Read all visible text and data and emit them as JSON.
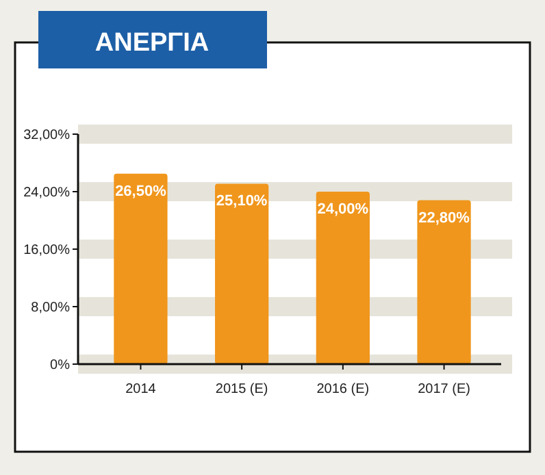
{
  "chart_data": {
    "type": "bar",
    "title": "ΑΝΕΡΓΙΑ",
    "categories": [
      "2014",
      "2015 (E)",
      "2016 (E)",
      "2017 (E)"
    ],
    "values": [
      26.5,
      25.1,
      24.0,
      22.8
    ],
    "value_labels": [
      "26,50%",
      "25,10%",
      "24,00%",
      "22,80%"
    ],
    "color": "#f0961c",
    "ylim": [
      0,
      32
    ],
    "yticks": [
      {
        "value": 0,
        "label": "0%"
      },
      {
        "value": 8,
        "label": "8,00%"
      },
      {
        "value": 16,
        "label": "16,00%"
      },
      {
        "value": 24,
        "label": "24,00%"
      },
      {
        "value": 32,
        "label": "32,00%"
      }
    ],
    "grid": "y"
  }
}
